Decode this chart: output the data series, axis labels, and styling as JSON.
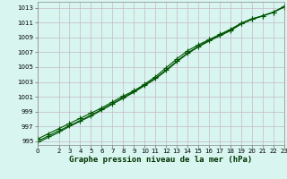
{
  "title": "Graphe pression niveau de la mer (hPa)",
  "bg_color": "#d8f5f0",
  "grid_color": "#c8b8c8",
  "line_color": "#005500",
  "xlim": [
    0,
    23
  ],
  "ylim": [
    994.5,
    1013.8
  ],
  "yticks": [
    995,
    997,
    999,
    1001,
    1003,
    1005,
    1007,
    1009,
    1011,
    1013
  ],
  "xticks": [
    0,
    2,
    3,
    4,
    5,
    6,
    7,
    8,
    9,
    10,
    11,
    12,
    13,
    14,
    15,
    16,
    17,
    18,
    19,
    20,
    21,
    22,
    23
  ],
  "hours": [
    0,
    1,
    2,
    3,
    4,
    5,
    6,
    7,
    8,
    9,
    10,
    11,
    12,
    13,
    14,
    15,
    16,
    17,
    18,
    19,
    20,
    21,
    22,
    23
  ],
  "line1": [
    995.0,
    995.7,
    996.4,
    997.1,
    997.8,
    998.5,
    999.3,
    1000.1,
    1000.9,
    1001.7,
    1002.6,
    1003.5,
    1004.6,
    1005.8,
    1006.9,
    1007.8,
    1008.6,
    1009.3,
    1010.0,
    1010.9,
    1011.5,
    1011.9,
    1012.4,
    1013.2
  ],
  "line2": [
    995.3,
    996.0,
    996.7,
    997.4,
    998.1,
    998.8,
    999.5,
    1000.3,
    1001.1,
    1001.8,
    1002.7,
    1003.7,
    1004.9,
    1006.1,
    1007.2,
    1008.0,
    1008.7,
    1009.4,
    1010.1,
    1010.9,
    1011.5,
    1011.9,
    1012.4,
    1013.1
  ],
  "line3": [
    994.8,
    995.5,
    996.2,
    997.0,
    997.7,
    998.4,
    999.2,
    1000.0,
    1000.8,
    1001.6,
    1002.5,
    1003.4,
    1004.5,
    1005.7,
    1006.8,
    1007.7,
    1008.5,
    1009.2,
    1009.9,
    1010.8,
    1011.4,
    1011.9,
    1012.4,
    1013.1
  ],
  "markersize": 2.0,
  "linewidth": 0.8,
  "title_fontsize": 6.5,
  "tick_fontsize": 5.0
}
